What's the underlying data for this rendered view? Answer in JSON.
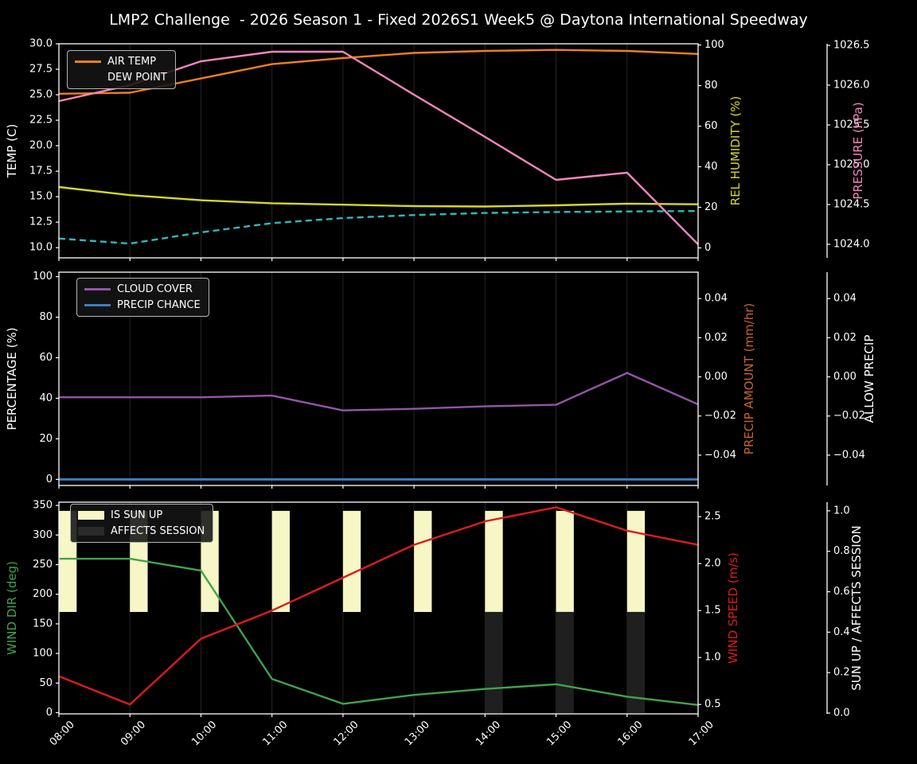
{
  "title": "LMP2 Challenge  - 2026 Season 1 - Fixed 2026S1 Week5 @ Daytona International Speedway",
  "chart_data": {
    "type": "line",
    "style": {
      "background": "#000000",
      "grid": "#242424",
      "spine": "#ffffff",
      "text": "#ffffff"
    },
    "x": {
      "hours": [
        8,
        9,
        10,
        11,
        12,
        13,
        14,
        15,
        16,
        17
      ],
      "labels": [
        "08:00",
        "09:00",
        "10:00",
        "11:00",
        "12:00",
        "13:00",
        "14:00",
        "15:00",
        "16:00",
        "17:00"
      ]
    },
    "panels": [
      {
        "name": "temperature",
        "axes": {
          "left": {
            "label": "TEMP (C)",
            "label_color": "#ffffff",
            "range": [
              9.0,
              30.0
            ],
            "ticks": {
              "values": [
                10,
                12.5,
                15,
                17.5,
                20,
                22.5,
                25,
                27.5,
                30
              ],
              "labels": [
                "10.0",
                "12.5",
                "15.0",
                "17.5",
                "20.0",
                "22.5",
                "25.0",
                "27.5",
                "30.0"
              ]
            }
          },
          "right_inner": {
            "label": "REL HUMIDITY (%)",
            "label_color": "#d8d822",
            "range": [
              -4.9,
              100.6
            ],
            "ticks": {
              "values": [
                0,
                20,
                40,
                60,
                80,
                100
              ],
              "labels": [
                "0",
                "20",
                "40",
                "60",
                "80",
                "100"
              ]
            }
          },
          "right_outer": {
            "label": "PRESSURE (hPa)",
            "label_color": "#f586bb",
            "range": [
              1023.83,
              1026.52
            ],
            "ticks": {
              "values": [
                1024.0,
                1024.5,
                1025.0,
                1025.5,
                1026.0,
                1026.5
              ],
              "labels": [
                "1024.0",
                "1024.5",
                "1025.0",
                "1025.5",
                "1026.0",
                "1026.5"
              ]
            }
          }
        },
        "series": [
          {
            "name": "AIR TEMP",
            "axis": "left",
            "color": "#f0801a",
            "dash": false,
            "values": [
              25.1,
              25.2,
              26.6,
              28.0,
              28.6,
              29.1,
              29.3,
              29.4,
              29.3,
              29.0
            ]
          },
          {
            "name": "DEW POINT",
            "axis": "left",
            "color": "#2bb9be",
            "dash": true,
            "values": [
              10.9,
              10.4,
              11.5,
              12.4,
              12.9,
              13.2,
              13.4,
              13.5,
              13.55,
              13.6
            ]
          },
          {
            "name": "REL HUMIDITY",
            "axis": "right_inner",
            "color": "#d8d822",
            "dash": false,
            "values": [
              30,
              26,
              23.5,
              22,
              21.3,
              20.6,
              20.4,
              21,
              21.8,
              21.5
            ]
          },
          {
            "name": "PRESSURE",
            "axis": "right_outer",
            "color": "#f586bb",
            "dash": false,
            "values": [
              1025.8,
              1026.0,
              1026.3,
              1026.42,
              1026.42,
              1025.88,
              1025.35,
              1024.81,
              1024.9,
              1024.0
            ]
          }
        ],
        "legend": {
          "items": [
            {
              "label": "AIR TEMP",
              "color": "#f0801a",
              "type": "line"
            },
            {
              "label": "DEW POINT",
              "color": "#2bb9be",
              "type": "dashed-line"
            }
          ]
        }
      },
      {
        "name": "percentage",
        "axes": {
          "left": {
            "label": "PERCENTAGE (%)",
            "label_color": "#ffffff",
            "range": [
              -3.0,
              102.2
            ],
            "ticks": {
              "values": [
                0,
                20,
                40,
                60,
                80,
                100
              ],
              "labels": [
                "0",
                "20",
                "40",
                "60",
                "80",
                "100"
              ]
            }
          },
          "right_inner": {
            "label": "PRECIP AMOUNT (mm/hr)",
            "label_color": "#c2662d",
            "range": [
              -0.0555,
              0.0535
            ],
            "ticks": {
              "values": [
                0.04,
                0.02,
                0.0,
                -0.02,
                -0.04
              ],
              "labels": [
                "0.04",
                "0.02",
                "0.00",
                "−0.02",
                "−0.04"
              ]
            }
          },
          "right_outer": {
            "label": "ALLOW PRECIP",
            "label_color": "#ffffff",
            "range": [
              -0.0555,
              0.0535
            ],
            "ticks": {
              "values": [
                0.04,
                0.02,
                0.0,
                -0.02,
                -0.04
              ],
              "labels": [
                "0.04",
                "0.02",
                "0.00",
                "−0.02",
                "−0.04"
              ]
            }
          }
        },
        "series": [
          {
            "name": "CLOUD COVER",
            "axis": "left",
            "color": "#9455a8",
            "dash": false,
            "values": [
              40.5,
              40.5,
              40.5,
              41.3,
              34,
              34.8,
              36,
              36.8,
              52.5,
              37
            ]
          },
          {
            "name": "PRECIP CHANCE",
            "axis": "left",
            "color": "#3d7dbf",
            "dash": false,
            "width": 3,
            "values": [
              0,
              0,
              0,
              0,
              0,
              0,
              0,
              0,
              0,
              0
            ]
          }
        ],
        "legend": {
          "items": [
            {
              "label": "CLOUD COVER",
              "color": "#9455a8",
              "type": "line"
            },
            {
              "label": "PRECIP CHANCE",
              "color": "#3d7dbf",
              "type": "line"
            }
          ]
        }
      },
      {
        "name": "wind",
        "axes": {
          "left": {
            "label": "WIND DIR (deg)",
            "label_color": "#42a34c",
            "range": [
              -2,
              355.5
            ],
            "ticks": {
              "values": [
                0,
                50,
                100,
                150,
                200,
                250,
                300,
                350
              ],
              "labels": [
                "0",
                "50",
                "100",
                "150",
                "200",
                "250",
                "300",
                "350"
              ]
            }
          },
          "right_inner": {
            "label": "WIND SPEED (m/s)",
            "label_color": "#dc1c1c",
            "range": [
              0.4,
              2.654
            ],
            "ticks": {
              "values": [
                0.5,
                1.0,
                1.5,
                2.0,
                2.5
              ],
              "labels": [
                "0.5",
                "1.0",
                "1.5",
                "2.0",
                "2.5"
              ]
            }
          },
          "right_outer": {
            "label": "SUN UP / AFFECTS SESSION",
            "label_color": "#ffffff",
            "range": [
              -0.004,
              1.043
            ],
            "ticks": {
              "values": [
                0.0,
                0.2,
                0.4,
                0.6,
                0.8,
                1.0
              ],
              "labels": [
                "0.0",
                "0.2",
                "0.4",
                "0.6",
                "0.8",
                "1.0"
              ]
            }
          }
        },
        "bars": [
          {
            "name": "IS SUN UP",
            "axis": "right_outer",
            "color": "#f6f6c6",
            "hours": [
              8,
              9,
              10,
              11,
              12,
              13,
              14,
              15,
              16
            ],
            "from": 0.5,
            "to": 1.0,
            "width_hours": 0.25
          },
          {
            "name": "AFFECTS SESSION",
            "axis": "right_outer",
            "color": "#1f1f1f",
            "hours": [
              14,
              15,
              16
            ],
            "from": 0.0,
            "to": 0.5,
            "width_hours": 0.25
          }
        ],
        "series": [
          {
            "name": "WIND DIR",
            "axis": "left",
            "color": "#42a34c",
            "dash": false,
            "values": [
              260,
              260,
              240,
              57,
              15,
              30,
              40,
              48,
              27,
              13
            ]
          },
          {
            "name": "WIND SPEED",
            "axis": "right_inner",
            "color": "#dc1c1c",
            "dash": false,
            "values": [
              0.8,
              0.5,
              1.2,
              1.5,
              1.85,
              2.2,
              2.45,
              2.6,
              2.35,
              2.2
            ]
          }
        ],
        "legend": {
          "items": [
            {
              "label": "IS SUN UP",
              "color": "#f6f6c6",
              "type": "rect"
            },
            {
              "label": "AFFECTS SESSION",
              "color": "#2a2a2a",
              "type": "rect"
            }
          ]
        }
      }
    ]
  }
}
